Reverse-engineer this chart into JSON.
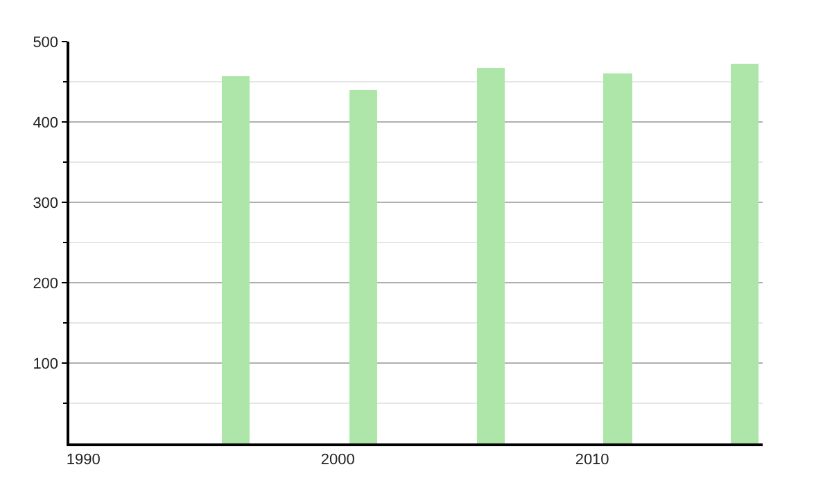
{
  "chart_data": {
    "type": "bar",
    "x": [
      1996,
      2001,
      2006,
      2011,
      2016
    ],
    "values": [
      457,
      439,
      467,
      460,
      473
    ],
    "color": "#aee6aa",
    "xlim": [
      1989.45,
      2016.7
    ],
    "xticks": [
      1990,
      2000,
      2010
    ],
    "ylim": [
      0,
      500
    ],
    "yticks": [
      {
        "value": 50,
        "label": null
      },
      100,
      {
        "value": 150,
        "label": null
      },
      200,
      {
        "value": 250,
        "label": null
      },
      300,
      {
        "value": 350,
        "label": null
      },
      400,
      {
        "value": 450,
        "label": null
      },
      500
    ],
    "grid": "y"
  }
}
